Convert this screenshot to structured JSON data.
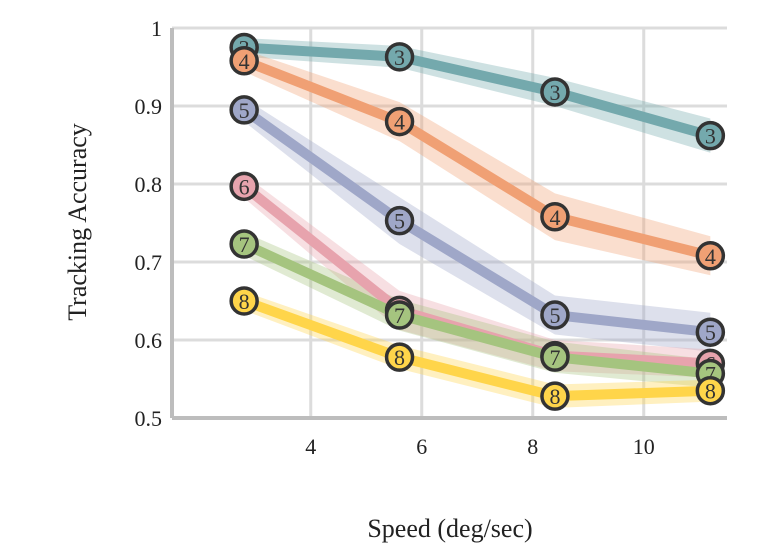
{
  "chart_data": {
    "type": "line",
    "xlabel": "Speed (deg/sec)",
    "ylabel": "Tracking Accuracy",
    "xlim": [
      1.5,
      11.5
    ],
    "ylim": [
      0.5,
      1.0
    ],
    "x_ticks": [
      4,
      6,
      8,
      10
    ],
    "y_ticks": [
      0.5,
      0.6,
      0.7,
      0.8,
      0.9,
      1.0
    ],
    "y_tick_labels": [
      "0.5",
      "0.6",
      "0.7",
      "0.8",
      "0.9",
      "1"
    ],
    "grid": true,
    "x": [
      2.8,
      5.6,
      8.4,
      11.2
    ],
    "series": [
      {
        "label": "3",
        "color": "#74a9ad",
        "values": [
          0.975,
          0.963,
          0.918,
          0.862
        ],
        "band": [
          0.012,
          0.014,
          0.018,
          0.022
        ]
      },
      {
        "label": "4",
        "color": "#f0a074",
        "values": [
          0.958,
          0.88,
          0.758,
          0.708
        ],
        "band": [
          0.014,
          0.025,
          0.03,
          0.025
        ]
      },
      {
        "label": "5",
        "color": "#9fa7c8",
        "values": [
          0.895,
          0.753,
          0.632,
          0.61
        ],
        "band": [
          0.015,
          0.03,
          0.025,
          0.025
        ]
      },
      {
        "label": "6",
        "color": "#e7a3ad",
        "values": [
          0.797,
          0.638,
          0.58,
          0.57
        ],
        "band": [
          0.015,
          0.025,
          0.02,
          0.018
        ]
      },
      {
        "label": "7",
        "color": "#a5c47f",
        "values": [
          0.723,
          0.632,
          0.578,
          0.557
        ],
        "band": [
          0.015,
          0.02,
          0.02,
          0.018
        ]
      },
      {
        "label": "8",
        "color": "#ffd54a",
        "values": [
          0.65,
          0.578,
          0.528,
          0.535
        ],
        "band": [
          0.012,
          0.015,
          0.015,
          0.014
        ]
      }
    ]
  }
}
